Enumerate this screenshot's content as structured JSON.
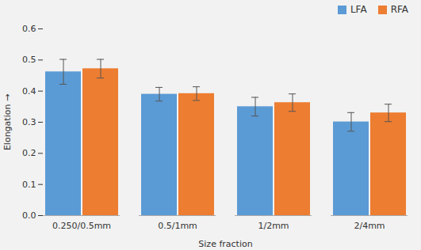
{
  "chart_data": {
    "type": "bar",
    "xlabel": "Size fraction",
    "ylabel": "Elongation",
    "categories": [
      "0.250/0.5mm",
      "0.5/1mm",
      "1/2mm",
      "2/4mm"
    ],
    "series": [
      {
        "name": "LFA",
        "color": "#5B9BD5",
        "values": [
          0.462,
          0.39,
          0.35,
          0.301
        ],
        "errors": [
          0.04,
          0.022,
          0.03,
          0.03
        ]
      },
      {
        "name": "RFA",
        "color": "#ED7D31",
        "values": [
          0.472,
          0.392,
          0.363,
          0.33
        ],
        "errors": [
          0.03,
          0.022,
          0.028,
          0.028
        ]
      }
    ],
    "ylim": [
      0,
      0.6
    ],
    "yticks": [
      {
        "value": 0,
        "label": "0.0"
      },
      {
        "value": 0.1,
        "label": "0.1"
      },
      {
        "value": 0.2,
        "label": "0.2"
      },
      {
        "value": 0.3,
        "label": "0.3"
      },
      {
        "value": 0.4,
        "label": "0.4"
      },
      {
        "value": 0.5,
        "label": "0.5"
      },
      {
        "value": 0.6,
        "label": "0.6"
      }
    ],
    "grid": false,
    "legend": "upper right"
  }
}
